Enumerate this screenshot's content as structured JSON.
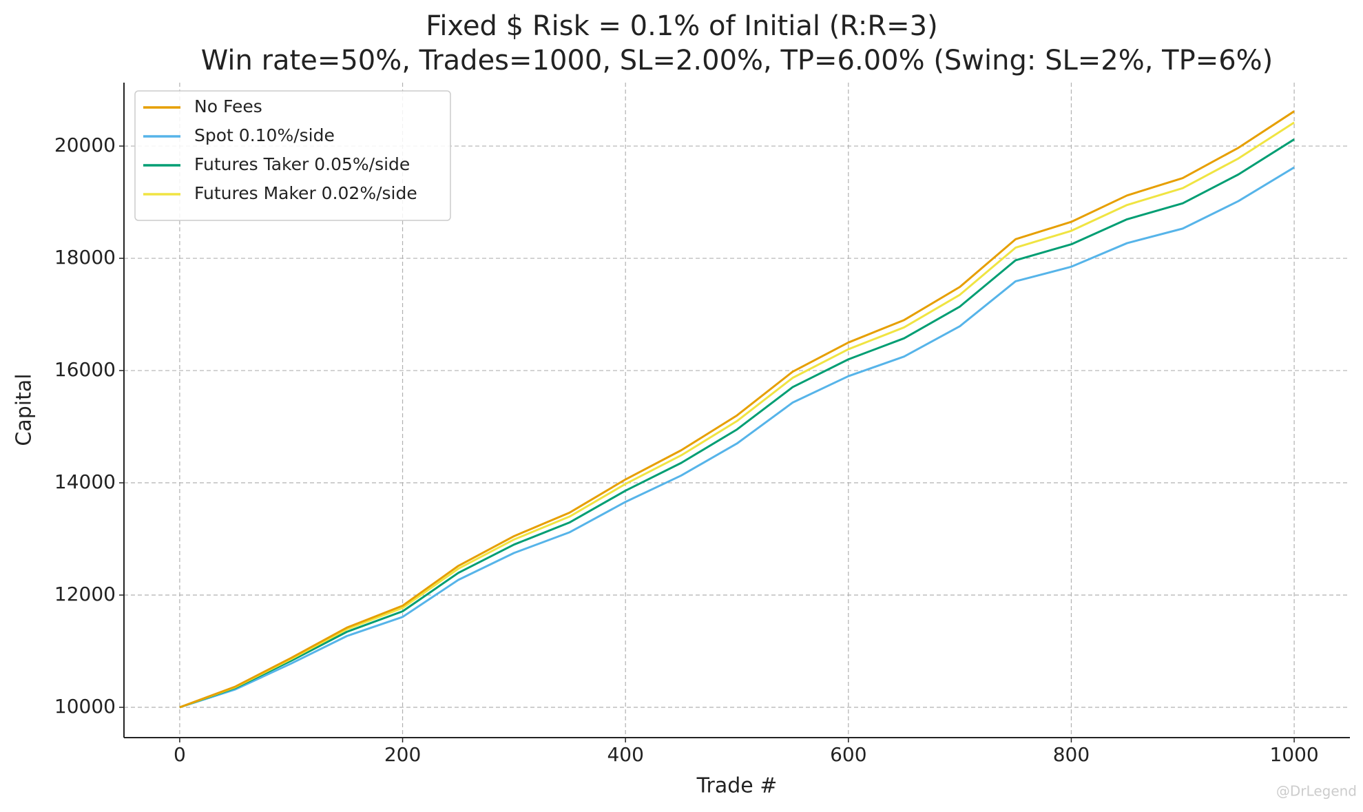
{
  "chart_data": {
    "type": "line",
    "title": "Fixed $ Risk = 0.1% of Initial (R:R=3)",
    "subtitle": "Win rate=50%, Trades=1000, SL=2.00%, TP=6.00% (Swing: SL=2%, TP=6%)",
    "x_label": "Trade #",
    "y_label": "Capital",
    "x": [
      0,
      50,
      100,
      150,
      200,
      250,
      300,
      350,
      400,
      450,
      500,
      550,
      600,
      650,
      700,
      750,
      800,
      850,
      900,
      950,
      1000
    ],
    "series": [
      {
        "name": "No Fees",
        "color": "#e69f00",
        "values": [
          10000,
          10370,
          10880,
          11420,
          11810,
          12520,
          13050,
          13470,
          14060,
          14580,
          15200,
          15980,
          16500,
          16900,
          17490,
          18340,
          18650,
          19120,
          19430,
          19970,
          20620
        ]
      },
      {
        "name": "Spot 0.10%/side",
        "color": "#56b4e9",
        "values": [
          10000,
          10320,
          10780,
          11270,
          11610,
          12270,
          12750,
          13120,
          13660,
          14130,
          14700,
          15430,
          15900,
          16250,
          16790,
          17590,
          17850,
          18270,
          18530,
          19020,
          19620
        ]
      },
      {
        "name": "Futures Taker 0.05%/side",
        "color": "#009e73",
        "values": [
          10000,
          10345,
          10830,
          11345,
          11710,
          12395,
          12900,
          13295,
          13860,
          14355,
          14950,
          15705,
          16200,
          16575,
          17140,
          17965,
          18250,
          18695,
          18980,
          19495,
          20120
        ]
      },
      {
        "name": "Futures Maker 0.02%/side",
        "color": "#f0e442",
        "values": [
          10000,
          10360,
          10860,
          11390,
          11770,
          12470,
          12990,
          13400,
          13980,
          14490,
          15100,
          15870,
          16380,
          16770,
          17350,
          18190,
          18490,
          18950,
          19250,
          19780,
          20420
        ]
      }
    ],
    "xlim": [
      -50,
      1050
    ],
    "ylim": [
      9460,
      21130
    ],
    "xticks": [
      0,
      200,
      400,
      600,
      800,
      1000
    ],
    "yticks": [
      10000,
      12000,
      14000,
      16000,
      18000,
      20000
    ],
    "grid": true,
    "legend": "upper left",
    "watermark": "@DrLegend"
  }
}
